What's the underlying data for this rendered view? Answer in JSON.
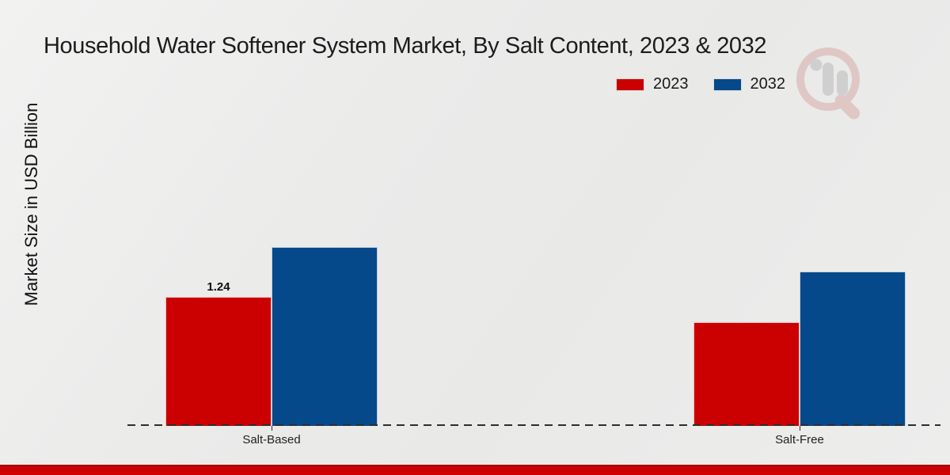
{
  "chart_data": {
    "type": "bar",
    "title": "Household Water Softener System Market, By Salt Content, 2023 & 2032",
    "ylabel": "Market Size in USD Billion",
    "xlabel": "",
    "categories": [
      "Salt-Based",
      "Salt-Free"
    ],
    "series": [
      {
        "name": "2023",
        "color": "#cb0101",
        "values": [
          1.24,
          1.0
        ],
        "labels": [
          "1.24",
          ""
        ]
      },
      {
        "name": "2032",
        "color": "#05498b",
        "values": [
          1.72,
          1.48
        ],
        "labels": [
          "",
          ""
        ]
      }
    ],
    "shown_data_labels": [
      "1.24"
    ],
    "legend_position": "top-right",
    "grid": false,
    "baseline_style": "dashed",
    "ylim": [
      0,
      2.0
    ]
  },
  "colors": {
    "series_2023": "#cb0101",
    "series_2032": "#05498b",
    "footer_band": "#cb0101",
    "background": "#ebebea",
    "baseline": "#2d2d2d"
  },
  "icons": {
    "watermark": "magnifier-bar-chart-logo"
  }
}
